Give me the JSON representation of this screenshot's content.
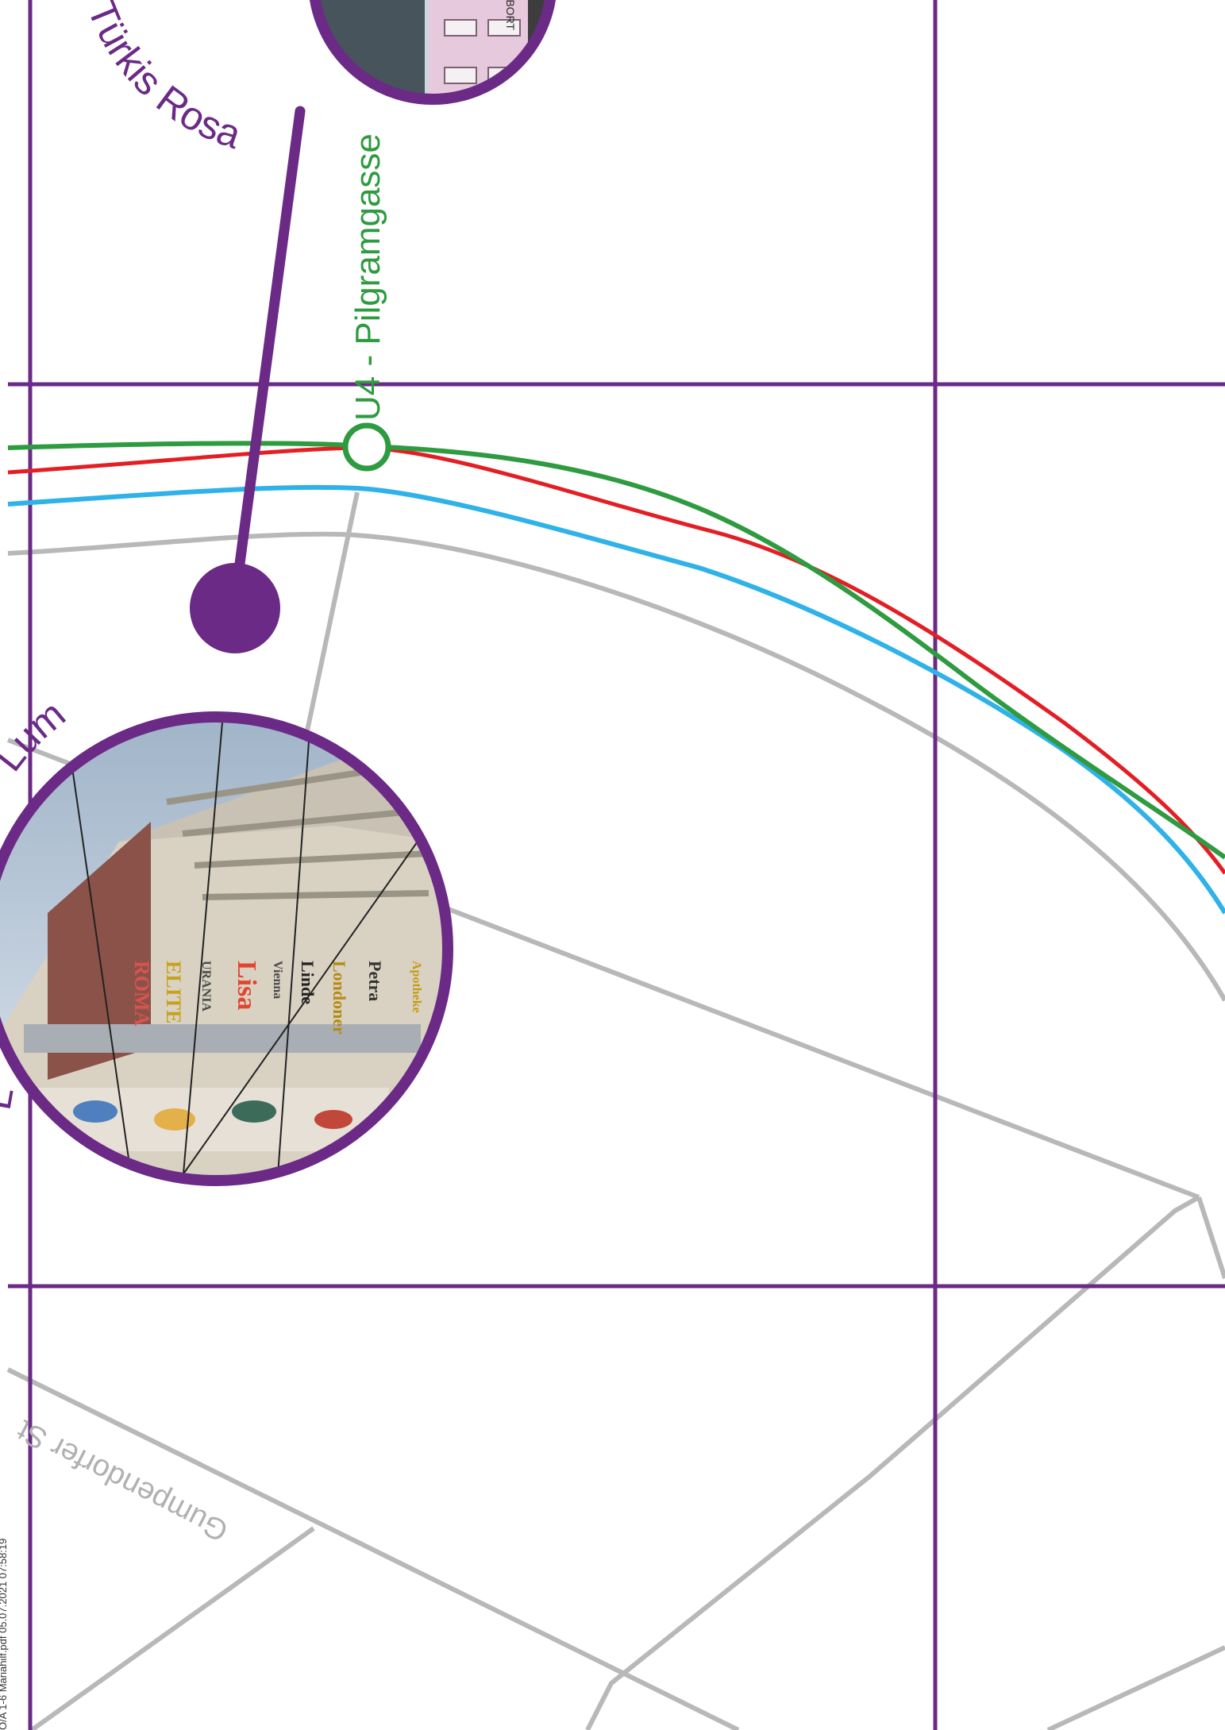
{
  "stations": [
    {
      "label": "U4 - Pilgramgasse",
      "color": "#2e9b40"
    }
  ],
  "photo_labels": [
    {
      "label": "Türkis Rosa"
    },
    {
      "label": "Lum"
    },
    {
      "label": "L"
    }
  ],
  "streets": [
    {
      "label": "Gumpendorfer St"
    }
  ],
  "print_info": "O/A 1-6 Mariahilf.pdf 05.07.2021 07:58:19",
  "photo_signs": {
    "top_photo_sign": "ABORT",
    "facade_signs": [
      "ROMA",
      "ELITE",
      "URANIA",
      "Lisa",
      "Vienna",
      "Linde",
      "Londoner",
      "Petra",
      "Apotheke"
    ]
  },
  "colors": {
    "grid": "#6b2a86",
    "u4_line": "#2e9b40",
    "red_line": "#e31e24",
    "blue_line": "#2fb2e8",
    "street": "#b8b8b8",
    "accent": "#6b2a86"
  },
  "icons": {
    "station_marker": "ring-icon",
    "callout_dot": "dot-icon"
  }
}
